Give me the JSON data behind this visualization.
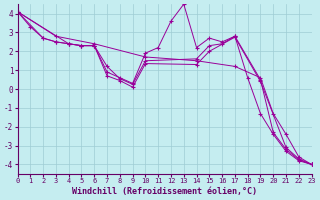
{
  "xlabel": "Windchill (Refroidissement éolien,°C)",
  "bg_color": "#c5edf0",
  "grid_color": "#9fcdd4",
  "line_color": "#990099",
  "xlim": [
    0,
    23
  ],
  "ylim": [
    -4.5,
    4.5
  ],
  "yticks": [
    -4,
    -3,
    -2,
    -1,
    0,
    1,
    2,
    3,
    4
  ],
  "xticks": [
    0,
    1,
    2,
    3,
    4,
    5,
    6,
    7,
    8,
    9,
    10,
    11,
    12,
    13,
    14,
    15,
    16,
    17,
    18,
    19,
    20,
    21,
    22,
    23
  ],
  "lines": [
    {
      "x": [
        0,
        1,
        2,
        3,
        4,
        5,
        6,
        7,
        8,
        9,
        10,
        11,
        12,
        13,
        14,
        15,
        16,
        17,
        18,
        19,
        20,
        21,
        22,
        23
      ],
      "y": [
        4.1,
        3.3,
        2.7,
        2.5,
        2.4,
        2.3,
        2.3,
        0.9,
        0.6,
        0.3,
        1.9,
        2.2,
        3.6,
        4.5,
        2.2,
        2.7,
        2.5,
        2.8,
        0.6,
        -1.3,
        -2.4,
        -3.3,
        -3.8,
        -4.0
      ]
    },
    {
      "x": [
        0,
        3,
        6,
        10,
        14,
        17,
        19,
        20,
        21,
        22,
        23
      ],
      "y": [
        4.1,
        2.8,
        2.4,
        1.7,
        1.5,
        1.2,
        0.6,
        -1.3,
        -2.4,
        -3.6,
        -4.0
      ]
    },
    {
      "x": [
        0,
        2,
        3,
        4,
        5,
        6,
        7,
        8,
        9,
        10,
        14,
        15,
        16,
        17,
        19,
        20,
        21,
        22,
        23
      ],
      "y": [
        4.1,
        2.7,
        2.5,
        2.4,
        2.3,
        2.3,
        1.2,
        0.55,
        0.25,
        1.5,
        1.6,
        2.3,
        2.4,
        2.8,
        0.5,
        -2.3,
        -3.2,
        -3.75,
        -4.0
      ]
    },
    {
      "x": [
        0,
        4,
        5,
        6,
        7,
        8,
        9,
        10,
        14,
        15,
        17,
        19,
        21,
        22,
        23
      ],
      "y": [
        4.1,
        2.4,
        2.3,
        2.3,
        0.7,
        0.45,
        0.1,
        1.35,
        1.3,
        2.0,
        2.75,
        0.4,
        -3.1,
        -3.7,
        -4.0
      ]
    }
  ]
}
